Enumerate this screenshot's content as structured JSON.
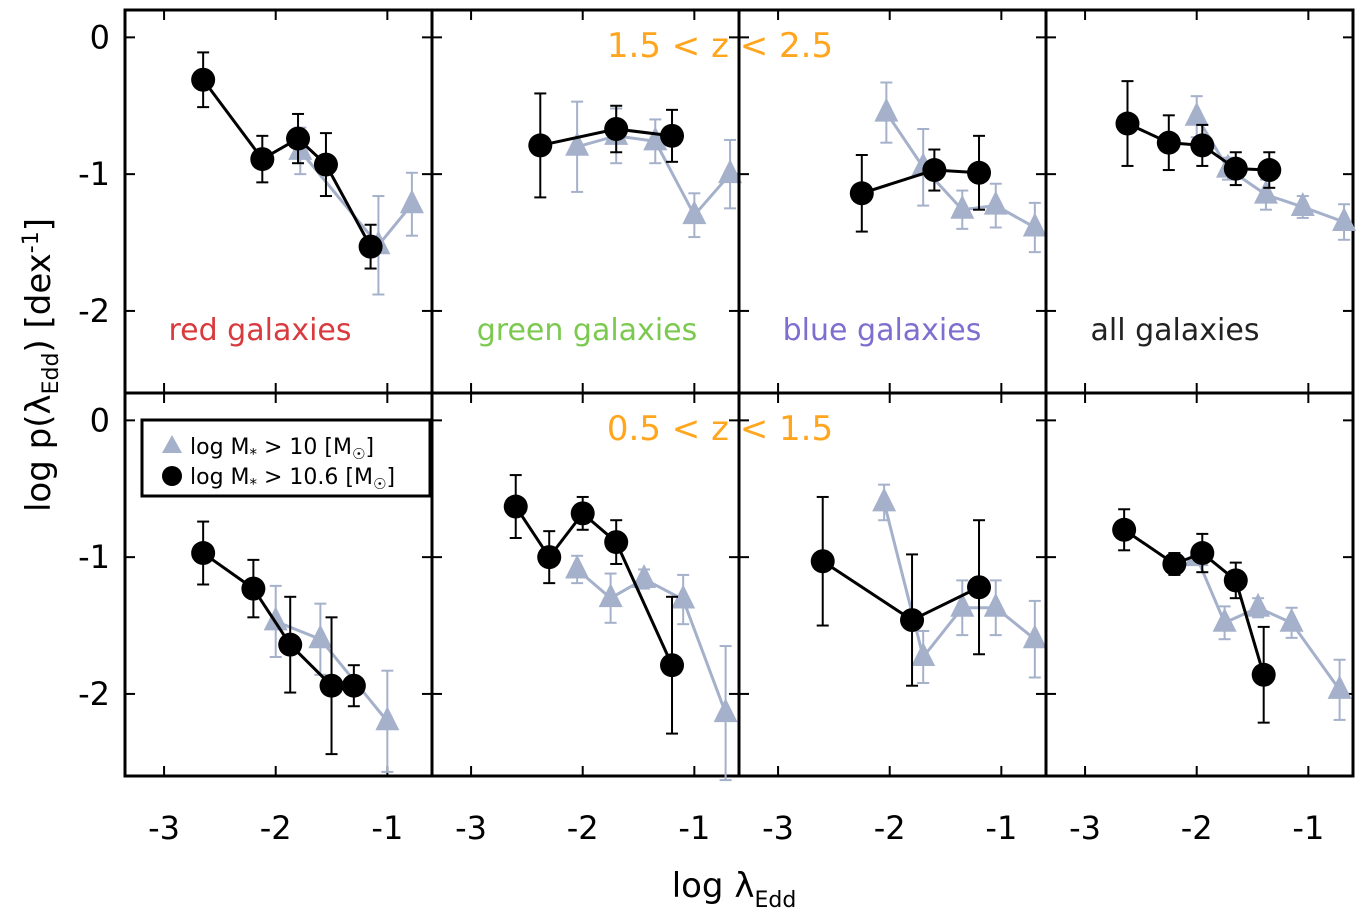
{
  "chart_data": {
    "type": "scatter",
    "x_axis": {
      "label": "log λ",
      "label_sub": "Edd",
      "ticks": [
        "-3",
        "-2",
        "-1"
      ],
      "tick_values": [
        -3,
        -2,
        -1
      ],
      "xlim": [
        -3.35,
        -0.6
      ]
    },
    "y_axis": {
      "label_prefix": "log p(λ",
      "label_sub": "Edd",
      "label_mid": ") [dex",
      "label_sup": "-1",
      "label_suffix": "]",
      "ticks": [
        "0",
        "-1",
        "-2"
      ],
      "tick_values": [
        0,
        -1,
        -2
      ],
      "ylim": [
        -2.6,
        0.2
      ]
    },
    "legend": {
      "placement": "top-left of bottom row",
      "items": [
        {
          "marker": "triangle",
          "color": "#a5b1ca",
          "text_pre": "log M",
          "sub": "*",
          "text_post": " > 10 [M",
          "sub2": "☉",
          "close": "]"
        },
        {
          "marker": "circle",
          "color": "#000000",
          "text_pre": "log M",
          "sub": "*",
          "text_post": " > 10.6 [M",
          "sub2": "☉",
          "close": "]"
        }
      ]
    },
    "redshift_labels": [
      "1.5 < z < 2.5",
      "0.5 < z < 1.5"
    ],
    "redshift_color": "#ffa51e",
    "column_labels": [
      {
        "text": "red galaxies",
        "color": "#d83a3e"
      },
      {
        "text": "green galaxies",
        "color": "#7cc950"
      },
      {
        "text": "blue galaxies",
        "color": "#7d6fcf"
      },
      {
        "text": "all galaxies",
        "color": "#222222"
      }
    ],
    "series_colors": {
      "high_mass": "#000000",
      "low_mass": "#a5b1ca"
    },
    "panels": [
      {
        "row": 0,
        "col": 0,
        "high_mass": {
          "x": [
            -2.65,
            -2.12,
            -1.8,
            -1.55,
            -1.15
          ],
          "y": [
            -0.31,
            -0.89,
            -0.74,
            -0.93,
            -1.53
          ],
          "yerr": [
            0.2,
            0.17,
            0.18,
            0.23,
            0.16
          ]
        },
        "low_mass": {
          "x": [
            -1.78,
            -1.08,
            -0.78
          ],
          "y": [
            -0.83,
            -1.52,
            -1.22
          ],
          "yerr": [
            0.17,
            0.36,
            0.23
          ]
        }
      },
      {
        "row": 0,
        "col": 1,
        "high_mass": {
          "x": [
            -2.38,
            -1.7,
            -1.2
          ],
          "y": [
            -0.79,
            -0.67,
            -0.72
          ],
          "yerr": [
            0.38,
            0.17,
            0.19
          ]
        },
        "low_mass": {
          "x": [
            -2.05,
            -1.7,
            -1.35,
            -1.0,
            -0.68
          ],
          "y": [
            -0.8,
            -0.72,
            -0.76,
            -1.3,
            -1.0
          ],
          "yerr": [
            0.33,
            0.2,
            0.16,
            0.16,
            0.25
          ]
        }
      },
      {
        "row": 0,
        "col": 2,
        "high_mass": {
          "x": [
            -2.25,
            -1.6,
            -1.2
          ],
          "y": [
            -1.14,
            -0.97,
            -0.99
          ],
          "yerr": [
            0.28,
            0.15,
            0.27
          ]
        },
        "low_mass": {
          "x": [
            -2.03,
            -1.7,
            -1.35,
            -1.05,
            -0.7
          ],
          "y": [
            -0.55,
            -0.95,
            -1.26,
            -1.23,
            -1.39
          ],
          "yerr": [
            0.22,
            0.28,
            0.14,
            0.16,
            0.18
          ]
        }
      },
      {
        "row": 0,
        "col": 3,
        "high_mass": {
          "x": [
            -2.62,
            -2.25,
            -1.95,
            -1.65,
            -1.35
          ],
          "y": [
            -0.63,
            -0.77,
            -0.79,
            -0.96,
            -0.97
          ],
          "yerr": [
            0.31,
            0.2,
            0.15,
            0.12,
            0.13
          ]
        },
        "low_mass": {
          "x": [
            -2.0,
            -1.72,
            -1.38,
            -1.05,
            -0.68
          ],
          "y": [
            -0.58,
            -0.96,
            -1.15,
            -1.24,
            -1.35
          ],
          "yerr": [
            0.15,
            0.08,
            0.11,
            0.08,
            0.13
          ]
        }
      },
      {
        "row": 1,
        "col": 0,
        "high_mass": {
          "x": [
            -2.65,
            -2.2,
            -1.87,
            -1.5,
            -1.3
          ],
          "y": [
            -0.97,
            -1.23,
            -1.64,
            -1.94,
            -1.94
          ],
          "yerr": [
            0.23,
            0.21,
            0.35,
            0.5,
            0.15
          ]
        },
        "low_mass": {
          "x": [
            -2.0,
            -1.6,
            -1.0
          ],
          "y": [
            -1.47,
            -1.6,
            -2.2
          ],
          "yerr": [
            0.26,
            0.26,
            0.37
          ]
        }
      },
      {
        "row": 1,
        "col": 1,
        "high_mass": {
          "x": [
            -2.6,
            -2.3,
            -2.0,
            -1.7,
            -1.2
          ],
          "y": [
            -0.63,
            -1.0,
            -0.68,
            -0.89,
            -1.79
          ],
          "yerr": [
            0.23,
            0.19,
            0.12,
            0.16,
            0.5
          ]
        },
        "low_mass": {
          "x": [
            -2.05,
            -1.75,
            -1.45,
            -1.1,
            -0.72
          ],
          "y": [
            -1.09,
            -1.3,
            -1.16,
            -1.31,
            -2.14
          ],
          "yerr": [
            0.1,
            0.18,
            0.07,
            0.18,
            0.49
          ]
        }
      },
      {
        "row": 1,
        "col": 2,
        "high_mass": {
          "x": [
            -2.6,
            -1.8,
            -1.2
          ],
          "y": [
            -1.03,
            -1.46,
            -1.22
          ],
          "yerr": [
            0.47,
            0.48,
            0.49
          ]
        },
        "low_mass": {
          "x": [
            -2.05,
            -1.7,
            -1.35,
            -1.05,
            -0.7
          ],
          "y": [
            -0.6,
            -1.73,
            -1.37,
            -1.37,
            -1.6
          ],
          "yerr": [
            0.13,
            0.19,
            0.2,
            0.2,
            0.28
          ]
        }
      },
      {
        "row": 1,
        "col": 3,
        "high_mass": {
          "x": [
            -2.65,
            -2.2,
            -1.95,
            -1.65,
            -1.4
          ],
          "y": [
            -0.8,
            -1.05,
            -0.97,
            -1.17,
            -1.86
          ],
          "yerr": [
            0.15,
            0.08,
            0.14,
            0.13,
            0.35
          ]
        },
        "low_mass": {
          "x": [
            -2.0,
            -1.75,
            -1.45,
            -1.15,
            -0.72
          ],
          "y": [
            -1.0,
            -1.48,
            -1.37,
            -1.48,
            -1.97
          ],
          "yerr": [
            0.04,
            0.12,
            0.07,
            0.11,
            0.22
          ]
        }
      }
    ]
  }
}
